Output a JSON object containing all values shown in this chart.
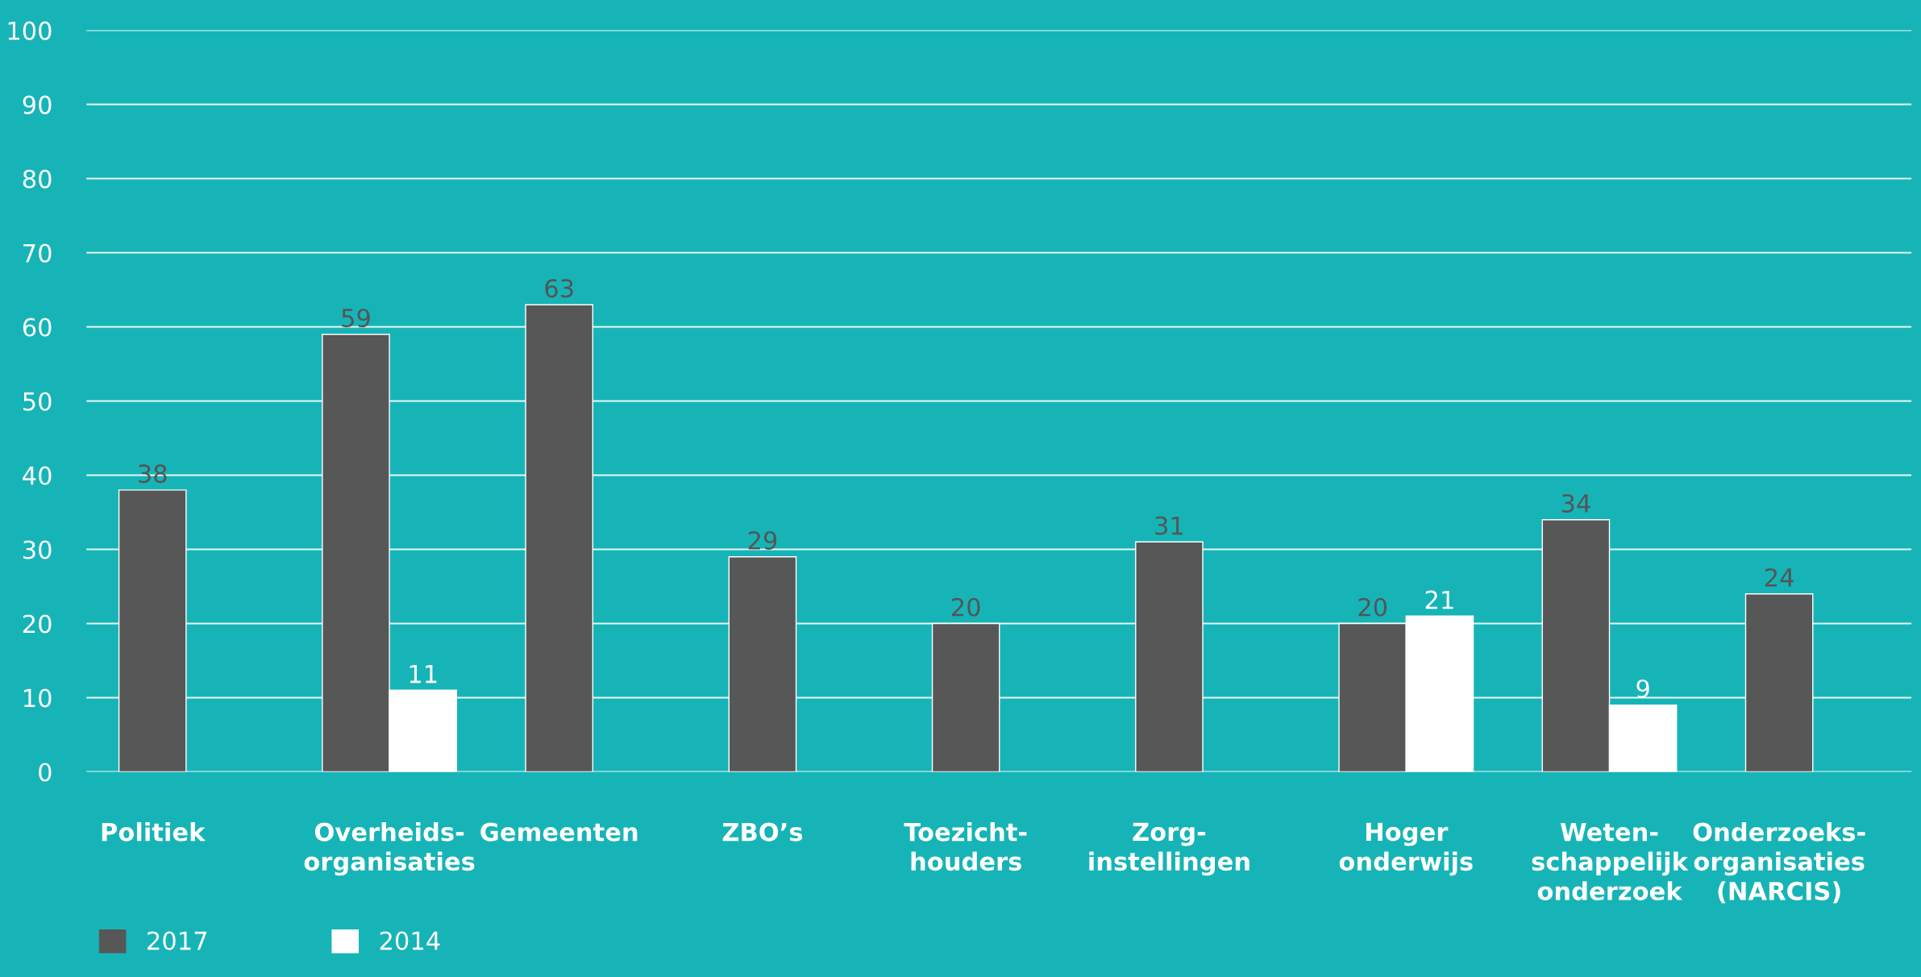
{
  "chart_data": {
    "type": "bar",
    "categories": [
      "Politiek",
      "Overheids-\norganisaties",
      "Gemeenten",
      "ZBO’s",
      "Toezicht-\nhouders",
      "Zorg-\ninstellingen",
      "Hoger\nonderwijs",
      "Weten-\nschappelijk\nonderzoek",
      "Onderzoeks-\norganisaties\n(NARCIS)"
    ],
    "series": [
      {
        "name": "2017",
        "color": "#575757",
        "values": [
          38,
          59,
          63,
          29,
          20,
          31,
          20,
          34,
          24
        ]
      },
      {
        "name": "2014",
        "color": "#ffffff",
        "values": [
          null,
          11,
          null,
          null,
          null,
          null,
          21,
          9,
          null
        ]
      }
    ],
    "ylim": [
      0,
      100
    ],
    "yticks": [
      0,
      10,
      20,
      30,
      40,
      50,
      60,
      70,
      80,
      90,
      100
    ],
    "grid": "y",
    "legend": "bottom left",
    "data_labels": true
  }
}
